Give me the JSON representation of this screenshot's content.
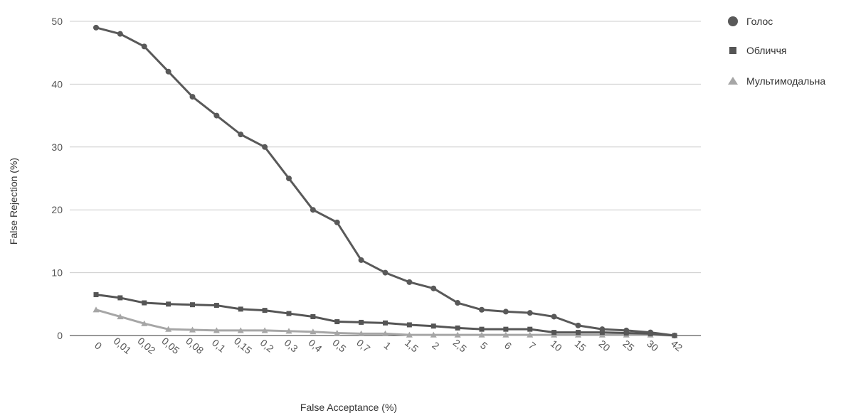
{
  "chart_data": {
    "type": "line",
    "xlabel": "False Acceptance (%)",
    "ylabel": "False Rejection (%)",
    "ylim": [
      0,
      50
    ],
    "yticks": [
      0,
      10,
      20,
      30,
      40,
      50
    ],
    "categories": [
      "0",
      "0,01",
      "0,02",
      "0,05",
      "0,08",
      "0,1",
      "0,15",
      "0,2",
      "0,3",
      "0,4",
      "0,5",
      "0,7",
      "1",
      "1,5",
      "2",
      "2,5",
      "5",
      "6",
      "7",
      "10",
      "15",
      "20",
      "25",
      "30",
      "42"
    ],
    "legend_position": "right",
    "grid": true,
    "series": [
      {
        "name": "Голос",
        "color": "#595959",
        "marker": "circle",
        "values": [
          49,
          48,
          46,
          42,
          38,
          35,
          32,
          30,
          25,
          20,
          18,
          12,
          10,
          8.5,
          7.5,
          5.2,
          4.1,
          3.8,
          3.6,
          3.0,
          1.6,
          1.0,
          0.8,
          0.5,
          0
        ]
      },
      {
        "name": "Обличчя",
        "color": "#555555",
        "marker": "square",
        "values": [
          6.5,
          6.0,
          5.2,
          5.0,
          4.9,
          4.8,
          4.2,
          4.0,
          3.5,
          3.0,
          2.2,
          2.1,
          2.0,
          1.7,
          1.5,
          1.2,
          1.0,
          1.0,
          1.0,
          0.5,
          0.5,
          0.5,
          0.4,
          0.3,
          0
        ]
      },
      {
        "name": "Мультимодальна",
        "color": "#a6a6a6",
        "marker": "triangle",
        "values": [
          4.1,
          3.0,
          1.9,
          1.0,
          0.9,
          0.8,
          0.8,
          0.8,
          0.7,
          0.6,
          0.4,
          0.3,
          0.3,
          0.1,
          0.1,
          0.1,
          0.1,
          0.1,
          0.1,
          0.1,
          0.1,
          0.1,
          0.1,
          0.1,
          0
        ]
      }
    ]
  }
}
